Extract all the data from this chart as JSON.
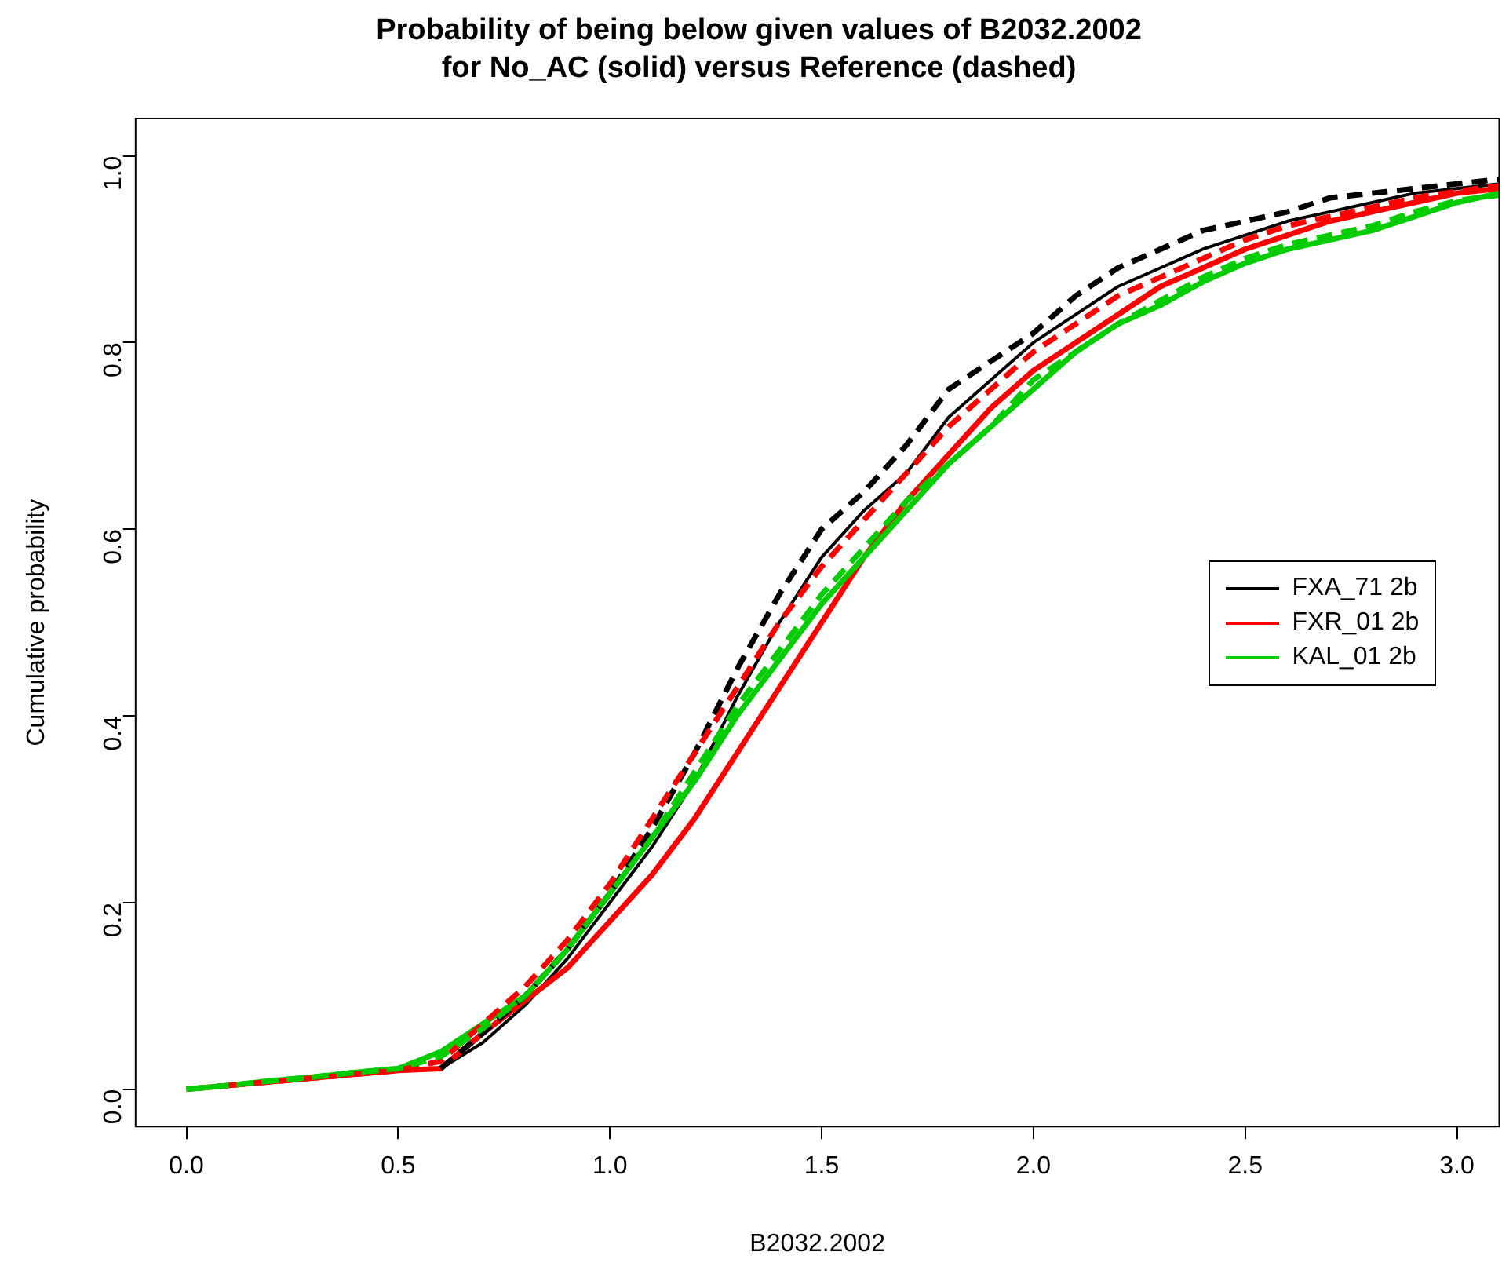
{
  "chart_data": {
    "type": "line",
    "title": "Probability of being below given values of B2032.2002\nfor No_AC (solid) versus Reference (dashed)",
    "xlabel": "B2032.2002",
    "ylabel": "Cumulative probability",
    "x": [
      0,
      0.1,
      0.2,
      0.3,
      0.4,
      0.5,
      0.6,
      0.7,
      0.8,
      0.9,
      1.0,
      1.1,
      1.2,
      1.3,
      1.4,
      1.5,
      1.6,
      1.7,
      1.8,
      1.9,
      2.0,
      2.1,
      2.2,
      2.3,
      2.4,
      2.5,
      2.6,
      2.7,
      2.8,
      2.9,
      3.0,
      3.1
    ],
    "xlim": [
      -0.12,
      3.1
    ],
    "xticks": [
      {
        "value": 0,
        "label": "0.0"
      },
      {
        "value": 0.5,
        "label": "0.5"
      },
      {
        "value": 1,
        "label": "1.0"
      },
      {
        "value": 1.5,
        "label": "1.5"
      },
      {
        "value": 2,
        "label": "2.0"
      },
      {
        "value": 2.5,
        "label": "2.5"
      },
      {
        "value": 3,
        "label": "3.0"
      }
    ],
    "ylim": [
      -0.04,
      1.04
    ],
    "yticks": [
      {
        "value": 0,
        "label": "0.0"
      },
      {
        "value": 0.2,
        "label": "0.2"
      },
      {
        "value": 0.4,
        "label": "0.4"
      },
      {
        "value": 0.6,
        "label": "0.6"
      },
      {
        "value": 0.8,
        "label": "0.8"
      },
      {
        "value": 1,
        "label": "1.0"
      }
    ],
    "grid": false,
    "legend": "right",
    "marker": "none",
    "series": [
      {
        "name": "FXA_71 2b",
        "color": "#000000",
        "line_style": "solid",
        "values": [
          null,
          null,
          null,
          null,
          null,
          0.02,
          0.022,
          0.05,
          0.09,
          0.14,
          0.2,
          0.26,
          0.33,
          0.42,
          0.5,
          0.57,
          0.62,
          0.66,
          0.72,
          0.76,
          0.8,
          0.83,
          0.86,
          0.88,
          0.9,
          0.915,
          0.93,
          0.94,
          0.95,
          0.96,
          0.965,
          0.97
        ]
      },
      {
        "name": "FXR_01 2b",
        "color": "#ff0000",
        "line_style": "solid",
        "values": [
          0,
          0.004,
          0.008,
          0.012,
          0.016,
          0.02,
          0.022,
          0.06,
          0.095,
          0.13,
          0.18,
          0.23,
          0.29,
          0.36,
          0.43,
          0.5,
          0.57,
          0.63,
          0.68,
          0.73,
          0.77,
          0.8,
          0.83,
          0.86,
          0.88,
          0.9,
          0.915,
          0.93,
          0.94,
          0.95,
          0.96,
          0.965
        ]
      },
      {
        "name": "KAL_01 2b",
        "color": "#00cc00",
        "line_style": "solid",
        "values": [
          0,
          0.004,
          0.009,
          0.013,
          0.018,
          0.022,
          0.04,
          0.07,
          0.1,
          0.15,
          0.21,
          0.27,
          0.33,
          0.4,
          0.46,
          0.52,
          0.57,
          0.62,
          0.67,
          0.71,
          0.75,
          0.79,
          0.82,
          0.84,
          0.865,
          0.885,
          0.9,
          0.91,
          0.92,
          0.935,
          0.95,
          0.96
        ]
      },
      {
        "color": "#000000",
        "line_style": "dashed",
        "values": [
          null,
          null,
          null,
          null,
          null,
          null,
          0.022,
          0.06,
          0.1,
          0.15,
          0.21,
          0.28,
          0.36,
          0.45,
          0.53,
          0.6,
          0.64,
          0.69,
          0.75,
          0.78,
          0.81,
          0.85,
          0.88,
          0.9,
          0.92,
          0.93,
          0.94,
          0.955,
          0.96,
          0.965,
          0.97,
          0.975
        ]
      },
      {
        "color": "#ff0000",
        "line_style": "dashed",
        "values": [
          null,
          0.004,
          0.008,
          0.012,
          0.016,
          0.02,
          0.03,
          0.07,
          0.11,
          0.16,
          0.22,
          0.29,
          0.36,
          0.43,
          0.5,
          0.56,
          0.61,
          0.66,
          0.71,
          0.75,
          0.79,
          0.82,
          0.85,
          0.87,
          0.89,
          0.91,
          0.925,
          0.935,
          0.945,
          0.955,
          0.962,
          0.968
        ]
      },
      {
        "color": "#00cc00",
        "line_style": "dashed",
        "values": [
          0,
          0.004,
          0.009,
          0.013,
          0.018,
          0.022,
          0.035,
          0.065,
          0.1,
          0.15,
          0.21,
          0.27,
          0.34,
          0.41,
          0.47,
          0.53,
          0.58,
          0.63,
          0.67,
          0.71,
          0.76,
          0.79,
          0.82,
          0.845,
          0.87,
          0.89,
          0.905,
          0.915,
          0.925,
          0.94,
          0.952,
          0.958
        ]
      }
    ]
  }
}
